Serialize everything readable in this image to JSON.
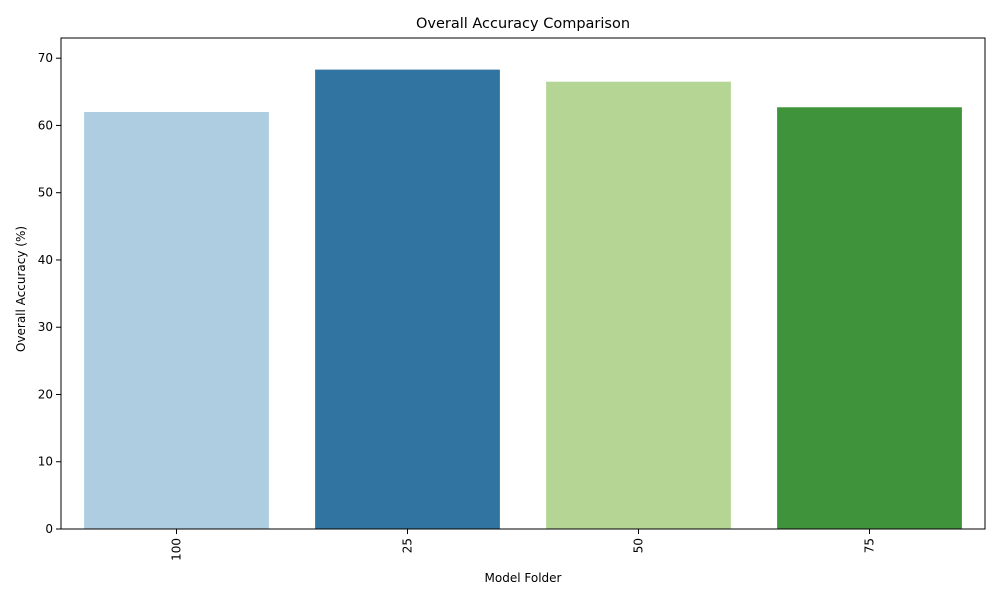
{
  "chart_data": {
    "type": "bar",
    "title": "Overall Accuracy Comparison",
    "xlabel": "Model Folder",
    "ylabel": "Overall Accuracy (%)",
    "categories": [
      "100",
      "25",
      "50",
      "75"
    ],
    "values": [
      62.0,
      68.3,
      66.5,
      62.7
    ],
    "colors": [
      "#aecde1",
      "#3274a1",
      "#b5d595",
      "#3f933a"
    ],
    "ylim": [
      0,
      70
    ],
    "yticks": [
      0,
      10,
      20,
      30,
      40,
      50,
      60,
      70
    ],
    "grid": false,
    "legend": "none",
    "xtick_rotation": "vertical"
  }
}
